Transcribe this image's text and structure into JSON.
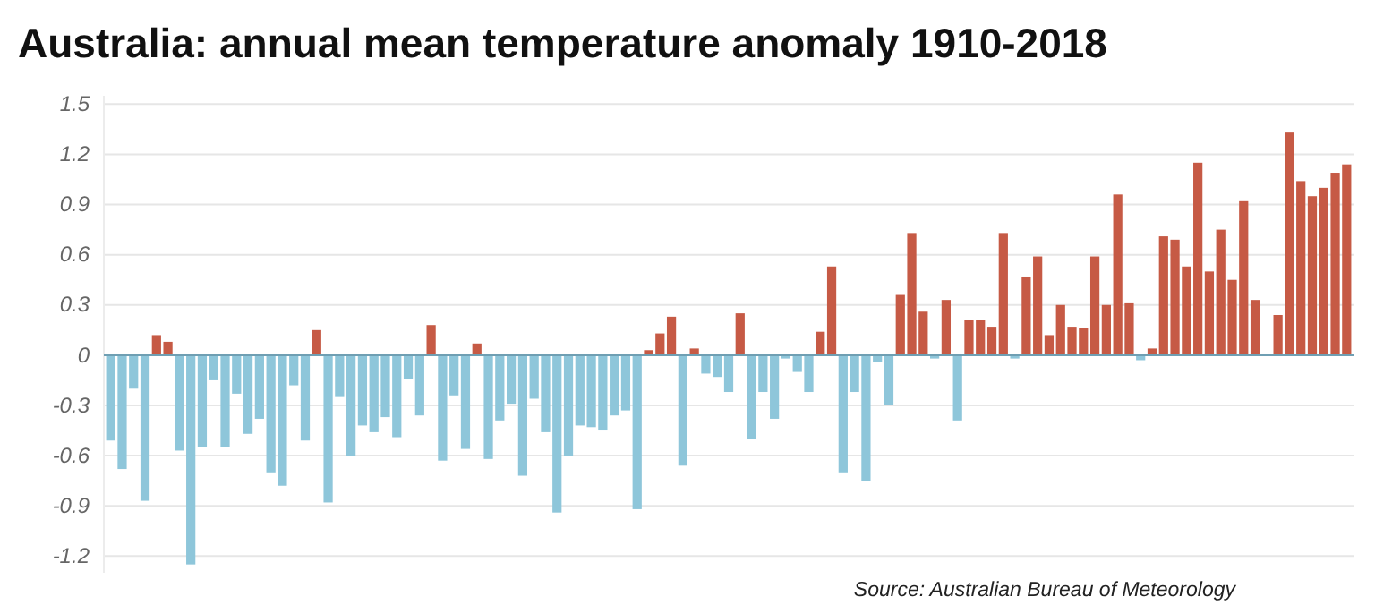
{
  "chart_data": {
    "type": "bar",
    "title": "Australia: annual mean temperature anomaly 1910-2018",
    "categories": [
      null,
      null,
      null,
      null,
      null,
      null,
      null,
      null,
      null,
      null,
      null,
      null,
      null,
      null,
      null,
      null,
      null,
      null,
      null,
      null,
      null,
      null,
      null,
      null,
      null,
      null,
      null,
      null,
      null,
      null,
      null,
      null,
      null,
      null,
      null,
      null,
      null,
      null,
      null,
      null,
      null,
      null,
      null,
      null,
      null,
      null,
      null,
      null,
      null,
      null,
      null,
      null,
      null,
      null,
      null,
      null,
      null,
      null,
      null,
      null,
      null,
      null,
      null,
      null,
      null,
      null,
      null,
      null,
      null,
      null,
      null,
      null,
      null,
      null,
      null,
      null,
      null,
      null,
      null,
      null,
      null,
      null,
      null,
      null,
      null,
      null,
      null,
      null,
      null,
      null,
      null,
      null,
      null,
      null,
      null,
      null,
      null,
      null,
      null,
      null,
      null,
      null,
      null,
      null,
      null,
      null,
      null,
      null,
      null
    ],
    "values": [
      -0.51,
      -0.68,
      -0.2,
      -0.87,
      0.12,
      0.08,
      -0.57,
      -1.25,
      -0.55,
      -0.15,
      -0.55,
      -0.23,
      -0.47,
      -0.38,
      -0.7,
      -0.78,
      -0.18,
      -0.51,
      0.15,
      -0.88,
      -0.25,
      -0.6,
      -0.42,
      -0.46,
      -0.37,
      -0.49,
      -0.14,
      -0.36,
      0.18,
      -0.63,
      -0.24,
      -0.56,
      0.07,
      -0.62,
      -0.39,
      -0.29,
      -0.72,
      -0.26,
      -0.46,
      -0.94,
      -0.6,
      -0.42,
      -0.43,
      -0.45,
      -0.36,
      -0.33,
      -0.92,
      0.03,
      0.13,
      0.23,
      -0.66,
      0.04,
      -0.11,
      -0.13,
      -0.22,
      0.25,
      -0.5,
      -0.22,
      -0.38,
      -0.02,
      -0.1,
      -0.22,
      0.14,
      0.53,
      -0.7,
      -0.22,
      -0.75,
      -0.04,
      -0.3,
      0.36,
      0.73,
      0.26,
      -0.02,
      0.33,
      -0.39,
      0.21,
      0.21,
      0.17,
      0.73,
      -0.02,
      0.47,
      0.59,
      0.12,
      0.3,
      0.17,
      0.16,
      0.59,
      0.3,
      0.96,
      0.31,
      -0.03,
      0.04,
      0.71,
      0.69,
      0.53,
      1.15,
      0.5,
      0.75,
      0.45,
      0.92,
      0.33,
      0,
      0.24,
      1.33,
      1.04,
      0.95,
      1.0,
      1.09,
      1.14
    ],
    "colors": [
      "#8ec6da",
      "#8ec6da",
      "#8ec6da",
      "#8ec6da",
      "#c65a45",
      "#c65a45",
      "#8ec6da",
      "#8ec6da",
      "#8ec6da",
      "#8ec6da",
      "#8ec6da",
      "#8ec6da",
      "#8ec6da",
      "#8ec6da",
      "#8ec6da",
      "#8ec6da",
      "#8ec6da",
      "#8ec6da",
      "#c65a45",
      "#8ec6da",
      "#8ec6da",
      "#8ec6da",
      "#8ec6da",
      "#8ec6da",
      "#8ec6da",
      "#8ec6da",
      "#8ec6da",
      "#8ec6da",
      "#c65a45",
      "#8ec6da",
      "#8ec6da",
      "#8ec6da",
      "#c65a45",
      "#8ec6da",
      "#8ec6da",
      "#8ec6da",
      "#8ec6da",
      "#8ec6da",
      "#8ec6da",
      "#8ec6da",
      "#8ec6da",
      "#8ec6da",
      "#8ec6da",
      "#8ec6da",
      "#8ec6da",
      "#8ec6da",
      "#8ec6da",
      "#c65a45",
      "#c65a45",
      "#c65a45",
      "#8ec6da",
      "#c65a45",
      "#8ec6da",
      "#8ec6da",
      "#8ec6da",
      "#c65a45",
      "#8ec6da",
      "#8ec6da",
      "#8ec6da",
      "#8ec6da",
      "#8ec6da",
      "#8ec6da",
      "#c65a45",
      "#c65a45",
      "#8ec6da",
      "#8ec6da",
      "#8ec6da",
      "#8ec6da",
      "#8ec6da",
      "#c65a45",
      "#c65a45",
      "#c65a45",
      "#8ec6da",
      "#c65a45",
      "#8ec6da",
      "#c65a45",
      "#c65a45",
      "#c65a45",
      "#c65a45",
      "#8ec6da",
      "#c65a45",
      "#c65a45",
      "#c65a45",
      "#c65a45",
      "#c65a45",
      "#c65a45",
      "#c65a45",
      "#c65a45",
      "#c65a45",
      "#c65a45",
      "#8ec6da",
      "#c65a45",
      "#c65a45",
      "#c65a45",
      "#c65a45",
      "#c65a45",
      "#c65a45",
      "#c65a45",
      "#c65a45",
      "#c65a45",
      "#c65a45",
      "#c65a45",
      "#c65a45",
      "#c65a45",
      "#c65a45",
      "#c65a45",
      "#c65a45",
      "#c65a45",
      "#c65a45"
    ],
    "ylim": [
      -1.3,
      1.55
    ],
    "yticks": [
      -1.2,
      -0.9,
      -0.6,
      -0.3,
      0,
      0.3,
      0.6,
      0.9,
      1.2,
      1.5
    ],
    "grid": "y",
    "ref_lines": [
      {
        "axis": "y",
        "value": 0,
        "color": "#6f9fb3"
      }
    ],
    "annotations": [
      "Source: Australian Bureau of Meteorology"
    ]
  }
}
